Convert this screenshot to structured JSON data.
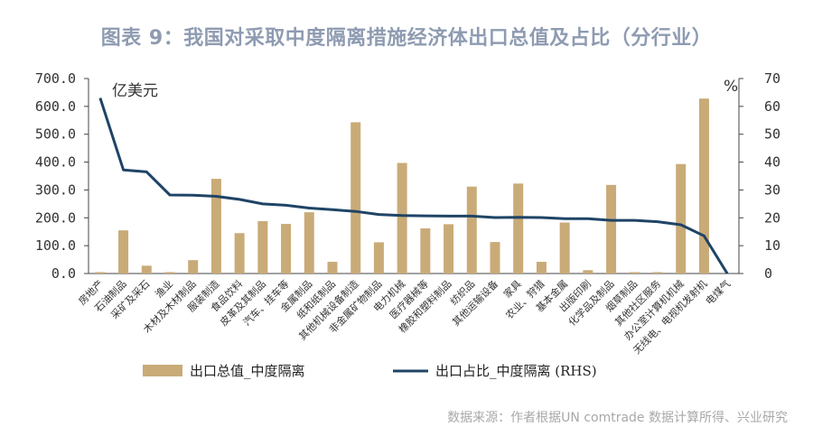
{
  "title": "图表 9：我国对采取中度隔离措施经济体出口总值及占比（分行业）",
  "source": "数据来源：作者根据UN comtrade 数据计算所得、兴业研究",
  "colors": {
    "bar": "#c9ab78",
    "line": "#1f4466",
    "axis": "#444444"
  },
  "chart_data": {
    "type": "bar+line",
    "left_unit": "亿美元",
    "right_unit": "%",
    "ylim_left": [
      0,
      700
    ],
    "ylim_right": [
      0,
      70
    ],
    "yticks_left": [
      "0.0",
      "100.0",
      "200.0",
      "300.0",
      "400.0",
      "500.0",
      "600.0",
      "700.0"
    ],
    "yticks_right": [
      "0",
      "10",
      "20",
      "30",
      "40",
      "50",
      "60",
      "70"
    ],
    "categories": [
      "房地产",
      "石油制品",
      "采矿及采石",
      "渔业",
      "木材及木材制品",
      "服装制造",
      "食品饮料",
      "皮革及其制品",
      "汽车、挂车等",
      "金属制品",
      "纸和纸制品",
      "其他机械设备制造",
      "非金属矿物制品",
      "电力机械",
      "医疗器械等",
      "橡胶和塑料制品",
      "纺织品",
      "其他运输设备",
      "家具",
      "农业、狩猎",
      "基本金属",
      "出版印刷",
      "化学品及制品",
      "烟草制品",
      "其他社区服务",
      "办公室计算机机械",
      "无线电、电视机发射机",
      "电煤气"
    ],
    "series": [
      {
        "name": "出口总值_中度隔离",
        "type": "bar",
        "axis": "left",
        "values": [
          5,
          155,
          28,
          5,
          48,
          340,
          145,
          188,
          178,
          220,
          42,
          543,
          112,
          397,
          162,
          177,
          312,
          113,
          323,
          42,
          183,
          12,
          318,
          5,
          5,
          393,
          628,
          0
        ]
      },
      {
        "name": "出口占比_中度隔离 (RHS)",
        "type": "line",
        "axis": "right",
        "values": [
          63,
          37.2,
          36.5,
          28.2,
          28.1,
          27.7,
          26.6,
          25.0,
          24.5,
          23.5,
          22.9,
          22.3,
          21.2,
          20.8,
          20.7,
          20.6,
          20.6,
          20.1,
          20.2,
          20.1,
          19.7,
          19.7,
          19.1,
          19.1,
          18.6,
          17.5,
          13.5,
          0
        ]
      }
    ]
  }
}
